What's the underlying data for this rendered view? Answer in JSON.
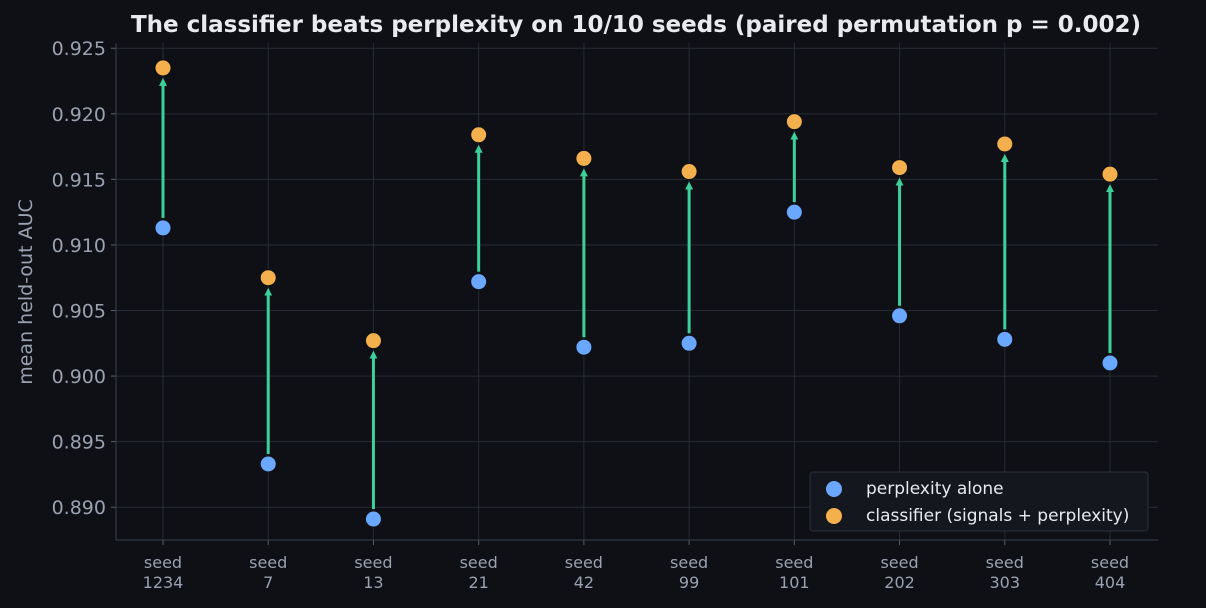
{
  "chart_data": {
    "type": "scatter",
    "title": "The classifier beats perplexity on 10/10 seeds  (paired permutation p = 0.002)",
    "xlabel": "",
    "ylabel": "mean held-out AUC",
    "categories": [
      [
        "seed",
        "1234"
      ],
      [
        "seed",
        "7"
      ],
      [
        "seed",
        "13"
      ],
      [
        "seed",
        "21"
      ],
      [
        "seed",
        "42"
      ],
      [
        "seed",
        "99"
      ],
      [
        "seed",
        "101"
      ],
      [
        "seed",
        "202"
      ],
      [
        "seed",
        "303"
      ],
      [
        "seed",
        "404"
      ]
    ],
    "series": [
      {
        "name": "perplexity alone",
        "color": "#6aa8ff",
        "values": [
          0.9113,
          0.8933,
          0.8891,
          0.9072,
          0.9022,
          0.9025,
          0.9125,
          0.9046,
          0.9028,
          0.901
        ]
      },
      {
        "name": "classifier (signals + perplexity)",
        "color": "#f5b04e",
        "values": [
          0.9235,
          0.9075,
          0.9027,
          0.9184,
          0.9166,
          0.9156,
          0.9194,
          0.9159,
          0.9177,
          0.9154
        ]
      }
    ],
    "arrow_color": "#3dd09a",
    "ylim": [
      0.8875,
      0.9254
    ],
    "yticks": [
      "0.890",
      "0.895",
      "0.900",
      "0.905",
      "0.910",
      "0.915",
      "0.920",
      "0.925"
    ],
    "grid": true,
    "legend": "bottom-right"
  }
}
